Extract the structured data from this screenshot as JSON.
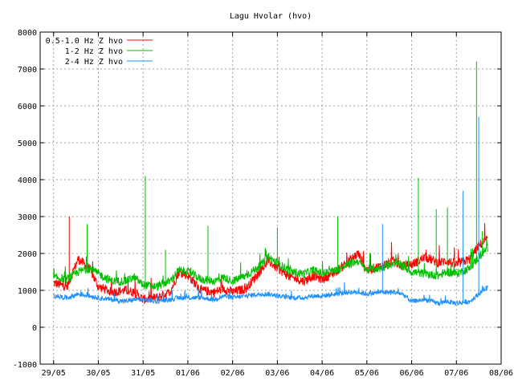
{
  "chart_data": {
    "type": "line",
    "title": "Lagu Hvolar (hvo)",
    "xlabel": "",
    "ylabel": "",
    "ylim": [
      -1000,
      8000
    ],
    "yticks": [
      "-1000",
      "0",
      "1000",
      "2000",
      "3000",
      "4000",
      "5000",
      "6000",
      "7000",
      "8000"
    ],
    "xticks": [
      "29/05",
      "30/05",
      "31/05",
      "01/06",
      "02/06",
      "03/06",
      "04/06",
      "05/06",
      "06/06",
      "07/06",
      "08/06"
    ],
    "xlim_days": [
      -0.3,
      10.0
    ],
    "grid": true,
    "legend_position": "top-left",
    "series": [
      {
        "name": "0.5-1.0 Hz Z hvo",
        "color": "#ff0000",
        "x": [
          0,
          0.3,
          0.55,
          0.8,
          1.0,
          1.3,
          1.6,
          1.8,
          2.0,
          2.3,
          2.6,
          2.8,
          3.0,
          3.3,
          3.6,
          3.8,
          4.0,
          4.3,
          4.6,
          4.8,
          5.0,
          5.3,
          5.6,
          5.8,
          6.0,
          6.3,
          6.6,
          6.8,
          7.0,
          7.3,
          7.6,
          7.8,
          8.0,
          8.3,
          8.6,
          8.8,
          9.0,
          9.3,
          9.5,
          9.7
        ],
        "y": [
          1200,
          1100,
          1850,
          1600,
          1100,
          950,
          1000,
          950,
          750,
          800,
          950,
          1500,
          1400,
          1000,
          950,
          1050,
          950,
          1050,
          1500,
          1800,
          1600,
          1350,
          1250,
          1400,
          1300,
          1500,
          1800,
          2000,
          1550,
          1650,
          1800,
          1650,
          1700,
          1900,
          1750,
          1800,
          1700,
          1850,
          2200,
          2400
        ]
      },
      {
        "name": "1-2 Hz Z hvo",
        "color": "#00c000",
        "x": [
          0,
          0.3,
          0.55,
          0.8,
          1.0,
          1.3,
          1.6,
          1.8,
          2.0,
          2.3,
          2.6,
          2.8,
          3.0,
          3.3,
          3.6,
          3.8,
          4.0,
          4.3,
          4.6,
          4.8,
          5.0,
          5.3,
          5.6,
          5.8,
          6.0,
          6.3,
          6.6,
          6.8,
          7.0,
          7.3,
          7.6,
          7.8,
          8.0,
          8.3,
          8.6,
          8.8,
          9.0,
          9.3,
          9.5,
          9.7
        ],
        "y": [
          1350,
          1300,
          1500,
          1600,
          1450,
          1250,
          1250,
          1350,
          1150,
          1100,
          1250,
          1550,
          1500,
          1300,
          1250,
          1350,
          1250,
          1400,
          1650,
          1900,
          1750,
          1500,
          1450,
          1550,
          1450,
          1550,
          1700,
          1800,
          1550,
          1600,
          1750,
          1650,
          1500,
          1450,
          1400,
          1500,
          1450,
          1600,
          1900,
          2150
        ]
      },
      {
        "name": "2-4 Hz Z hvo",
        "color": "#1e90ff",
        "x": [
          0,
          0.3,
          0.55,
          0.8,
          1.0,
          1.3,
          1.6,
          1.8,
          2.0,
          2.3,
          2.6,
          2.8,
          3.0,
          3.3,
          3.6,
          3.8,
          4.0,
          4.3,
          4.6,
          4.8,
          5.0,
          5.3,
          5.6,
          5.8,
          6.0,
          6.3,
          6.6,
          6.8,
          7.0,
          7.3,
          7.6,
          7.8,
          8.0,
          8.3,
          8.6,
          8.8,
          9.0,
          9.3,
          9.5,
          9.7
        ],
        "y": [
          850,
          800,
          900,
          850,
          800,
          750,
          700,
          750,
          750,
          700,
          750,
          800,
          800,
          800,
          750,
          850,
          800,
          850,
          900,
          900,
          850,
          800,
          800,
          850,
          850,
          900,
          950,
          950,
          900,
          950,
          950,
          900,
          700,
          750,
          650,
          700,
          650,
          700,
          900,
          1100
        ]
      }
    ],
    "spikes": [
      {
        "series": 0,
        "x": 0.35,
        "y": 3000
      },
      {
        "series": 1,
        "x": 0.75,
        "y": 2800
      },
      {
        "series": 1,
        "x": 2.05,
        "y": 4100
      },
      {
        "series": 1,
        "x": 2.5,
        "y": 2100
      },
      {
        "series": 1,
        "x": 3.45,
        "y": 2750
      },
      {
        "series": 1,
        "x": 5.0,
        "y": 2700
      },
      {
        "series": 1,
        "x": 6.35,
        "y": 3000
      },
      {
        "series": 2,
        "x": 7.35,
        "y": 2800
      },
      {
        "series": 1,
        "x": 8.15,
        "y": 4050
      },
      {
        "series": 1,
        "x": 8.55,
        "y": 3200
      },
      {
        "series": 1,
        "x": 8.8,
        "y": 3250
      },
      {
        "series": 2,
        "x": 9.15,
        "y": 3700
      },
      {
        "series": 1,
        "x": 9.45,
        "y": 7200
      },
      {
        "series": 2,
        "x": 9.5,
        "y": 5700
      },
      {
        "series": 1,
        "x": 9.58,
        "y": 2600
      }
    ]
  }
}
